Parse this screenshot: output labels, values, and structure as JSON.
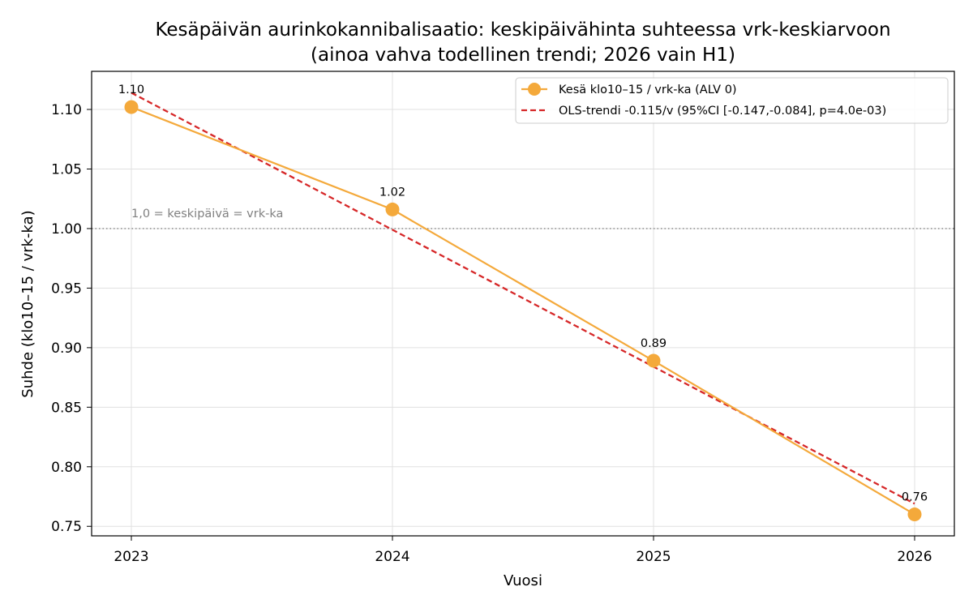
{
  "colors": {
    "series": "#f4a93b",
    "trend": "#d62728",
    "reference": "#808080",
    "grid": "#e0e0e0"
  },
  "chart_data": {
    "type": "line",
    "title": "Kesäpäivän aurinkokannibalisaatio: keskipäivähinta suhteessa vrk-keskiarvoon",
    "subtitle": "(ainoa vahva todellinen trendi; 2026 vain H1)",
    "xlabel": "Vuosi",
    "ylabel": "Suhde (klo10–15 / vrk-ka)",
    "x": [
      2023,
      2024,
      2025,
      2026
    ],
    "x_tick_labels": [
      "2023",
      "2024",
      "2025",
      "2026"
    ],
    "ylim": [
      0.742,
      1.132
    ],
    "y_ticks": [
      0.75,
      0.8,
      0.85,
      0.9,
      0.95,
      1.0,
      1.05,
      1.1
    ],
    "y_tick_labels": [
      "0.75",
      "0.80",
      "0.85",
      "0.90",
      "0.95",
      "1.00",
      "1.05",
      "1.10"
    ],
    "grid": true,
    "legend_position": "top-right",
    "series": [
      {
        "name": "Kesä klo10–15 / vrk-ka (ALV 0)",
        "style": "line-with-markers",
        "values": [
          1.102,
          1.016,
          0.889,
          0.76
        ],
        "data_labels": [
          "1.10",
          "1.02",
          "0.89",
          "0.76"
        ]
      },
      {
        "name": "OLS-trendi -0.115/v (95%CI [-0.147,-0.084], p=4.0e-03)",
        "style": "dashed",
        "values": [
          1.114,
          0.999,
          0.884,
          0.769
        ]
      }
    ],
    "reference_line": {
      "y": 1.0,
      "label": "1,0 = keskipäivä = vrk-ka"
    }
  }
}
